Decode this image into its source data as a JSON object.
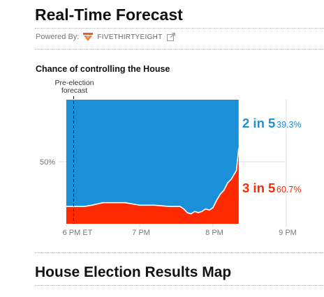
{
  "header": {
    "title": "Real-Time Forecast",
    "powered_by_label": "Powered By:",
    "brand": "FIVETHIRTYEIGHT"
  },
  "section": {
    "title": "House Election Results Map"
  },
  "colors": {
    "dem": "#1a90d8",
    "rep": "#ff2a00",
    "grid": "#dddddd"
  },
  "chart_data": {
    "type": "area",
    "title": "Chance of controlling the House",
    "annotation": "Pre-election\nforecast",
    "annotation_x": 18.1,
    "y_tick": {
      "value": 50,
      "label": "50%"
    },
    "ylim": [
      0,
      100
    ],
    "xlim": [
      18,
      21
    ],
    "x_ticks": [
      {
        "value": 18,
        "label": "6 PM ET"
      },
      {
        "value": 19,
        "label": "7 PM"
      },
      {
        "value": 20,
        "label": "8 PM"
      },
      {
        "value": 21,
        "label": "9 PM"
      }
    ],
    "series": [
      {
        "label": "2 in 5",
        "value_label": "39.3%",
        "color": "#1a90d8"
      },
      {
        "label": "3 in 5",
        "value_label": "60.7%",
        "color": "#ff2a00"
      }
    ],
    "x": [
      18.0,
      18.25,
      18.35,
      18.5,
      18.65,
      18.8,
      18.9,
      19.0,
      19.2,
      19.4,
      19.55,
      19.6,
      19.65,
      19.7,
      19.75,
      19.8,
      19.85,
      19.9,
      19.95,
      20.0,
      20.05,
      20.1,
      20.15,
      20.2,
      20.25,
      20.28,
      20.32,
      20.35
    ],
    "values": [
      14,
      14,
      15,
      17,
      17,
      17,
      16,
      15,
      15,
      14,
      14,
      12,
      9,
      8,
      10,
      9,
      10,
      12,
      11,
      13,
      19,
      24,
      27,
      33,
      36,
      39,
      43,
      60.7
    ]
  }
}
